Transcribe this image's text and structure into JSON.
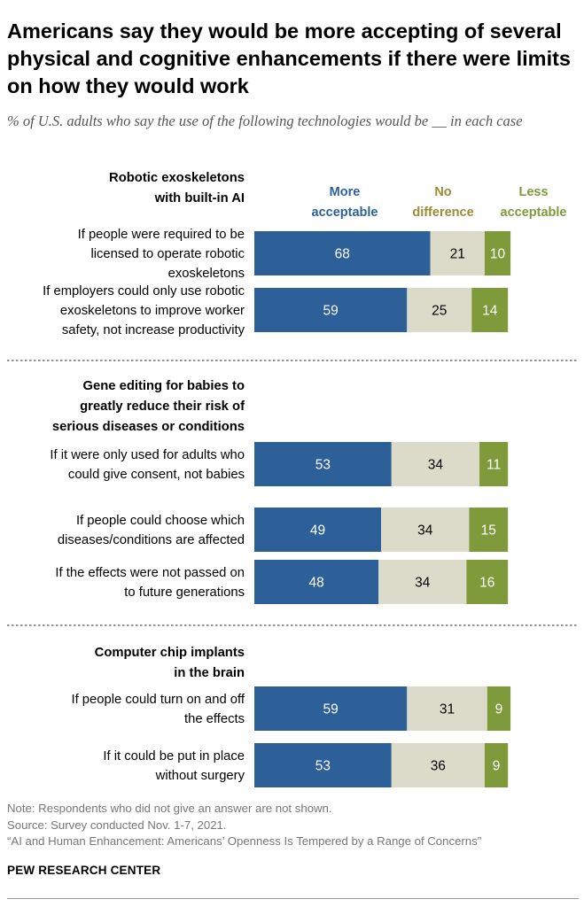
{
  "title": "Americans say they would be more accepting of several physical and cognitive enhancements if there were limits on how they would work",
  "subtitle": "% of U.S. adults who say the use of the following technologies would be __ in each case",
  "colors": {
    "more_acceptable": "#2d5f99",
    "no_difference": "#dcdbca",
    "less_acceptable": "#7f9a3a",
    "more_label": "#2d5f99",
    "no_diff_label": "#9a8c36",
    "less_label": "#7f9a3a"
  },
  "chart_data": {
    "type": "bar",
    "orientation": "horizontal",
    "stacked": true,
    "legend": {
      "more_acceptable": [
        "More",
        "acceptable"
      ],
      "no_difference": [
        "No",
        "difference"
      ],
      "less_acceptable": [
        "Less",
        "acceptable"
      ]
    },
    "groups": [
      {
        "heading": [
          "Robotic exoskeletons",
          "with built-in AI"
        ],
        "items": [
          {
            "label": [
              "If people were required to be",
              "licensed to operate robotic",
              "exoskeletons"
            ],
            "values": [
              68,
              21,
              10
            ]
          },
          {
            "label": [
              "If employers could only use robotic",
              "exoskeletons to improve worker",
              "safety, not increase productivity"
            ],
            "values": [
              59,
              25,
              14
            ]
          }
        ]
      },
      {
        "heading": [
          "Gene editing for babies to",
          "greatly reduce their risk of",
          "serious diseases or conditions"
        ],
        "items": [
          {
            "label": [
              "If it were only used for adults who",
              "could give consent, not babies"
            ],
            "values": [
              53,
              34,
              11
            ]
          },
          {
            "label": [
              "If people could choose which",
              "diseases/conditions are affected"
            ],
            "values": [
              49,
              34,
              15
            ]
          },
          {
            "label": [
              "If the effects were not passed on",
              "to future generations"
            ],
            "values": [
              48,
              34,
              16
            ]
          }
        ]
      },
      {
        "heading": [
          "Computer chip implants",
          "in the brain"
        ],
        "items": [
          {
            "label": [
              "If people could turn on and off",
              "the effects"
            ],
            "values": [
              59,
              31,
              9
            ]
          },
          {
            "label": [
              "If it could be put in place",
              "without surgery"
            ],
            "values": [
              53,
              36,
              9
            ]
          }
        ]
      }
    ]
  },
  "notes": {
    "note": "Note: Respondents who did not give an answer are not shown.",
    "source": "Source: Survey conducted Nov. 1-7, 2021.",
    "report": "“AI and Human Enhancement: Americans’ Openness Is Tempered by a Range of Concerns”"
  },
  "brand": "PEW RESEARCH CENTER"
}
